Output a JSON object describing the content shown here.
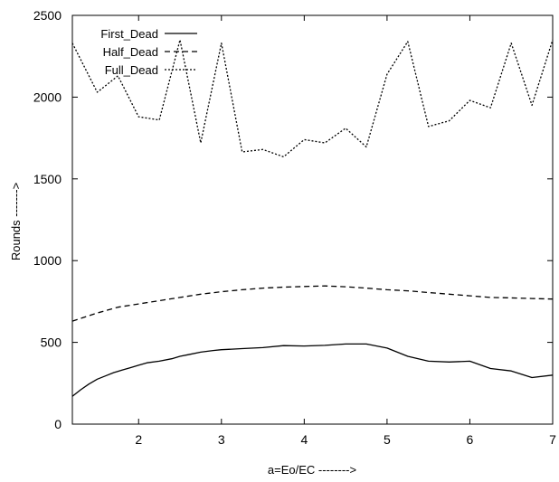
{
  "chart_data": {
    "type": "line",
    "title": "",
    "xlabel": "a=Eo/EC -------->",
    "ylabel": "Rounds ------->",
    "xlim": [
      1.2,
      7.0
    ],
    "ylim": [
      0,
      2500
    ],
    "xticks": [
      2,
      3,
      4,
      5,
      6,
      7
    ],
    "yticks": [
      0,
      500,
      1000,
      1500,
      2000,
      2500
    ],
    "grid": false,
    "legend_position": "top-left",
    "series": [
      {
        "name": "First_Dead",
        "style": "solid",
        "color": "#000000",
        "points": [
          [
            1.2,
            170
          ],
          [
            1.3,
            210
          ],
          [
            1.4,
            245
          ],
          [
            1.5,
            275
          ],
          [
            1.6,
            295
          ],
          [
            1.7,
            315
          ],
          [
            1.8,
            330
          ],
          [
            1.9,
            345
          ],
          [
            2.0,
            360
          ],
          [
            2.1,
            375
          ],
          [
            2.25,
            385
          ],
          [
            2.4,
            400
          ],
          [
            2.5,
            415
          ],
          [
            2.6,
            425
          ],
          [
            2.75,
            440
          ],
          [
            2.9,
            450
          ],
          [
            3.0,
            455
          ],
          [
            3.25,
            462
          ],
          [
            3.5,
            468
          ],
          [
            3.75,
            480
          ],
          [
            4.0,
            478
          ],
          [
            4.25,
            482
          ],
          [
            4.5,
            490
          ],
          [
            4.75,
            490
          ],
          [
            5.0,
            465
          ],
          [
            5.25,
            415
          ],
          [
            5.5,
            385
          ],
          [
            5.75,
            380
          ],
          [
            6.0,
            385
          ],
          [
            6.25,
            340
          ],
          [
            6.5,
            325
          ],
          [
            6.75,
            285
          ],
          [
            7.0,
            300
          ]
        ]
      },
      {
        "name": "Half_Dead",
        "style": "dashed",
        "color": "#000000",
        "points": [
          [
            1.2,
            630
          ],
          [
            1.5,
            680
          ],
          [
            1.75,
            715
          ],
          [
            2.0,
            735
          ],
          [
            2.25,
            755
          ],
          [
            2.5,
            775
          ],
          [
            2.75,
            795
          ],
          [
            3.0,
            810
          ],
          [
            3.25,
            822
          ],
          [
            3.5,
            832
          ],
          [
            3.75,
            838
          ],
          [
            4.0,
            842
          ],
          [
            4.25,
            845
          ],
          [
            4.5,
            840
          ],
          [
            4.75,
            832
          ],
          [
            5.0,
            822
          ],
          [
            5.25,
            815
          ],
          [
            5.5,
            805
          ],
          [
            5.75,
            795
          ],
          [
            6.0,
            785
          ],
          [
            6.25,
            775
          ],
          [
            6.5,
            772
          ],
          [
            6.75,
            768
          ],
          [
            7.0,
            765
          ]
        ]
      },
      {
        "name": "Full_Dead",
        "style": "dotted",
        "color": "#000000",
        "points": [
          [
            1.2,
            2330
          ],
          [
            1.5,
            2030
          ],
          [
            1.75,
            2130
          ],
          [
            2.0,
            1880
          ],
          [
            2.25,
            1860
          ],
          [
            2.5,
            2350
          ],
          [
            2.75,
            1720
          ],
          [
            3.0,
            2330
          ],
          [
            3.25,
            1665
          ],
          [
            3.5,
            1680
          ],
          [
            3.75,
            1635
          ],
          [
            4.0,
            1740
          ],
          [
            4.25,
            1720
          ],
          [
            4.5,
            1810
          ],
          [
            4.75,
            1695
          ],
          [
            5.0,
            2140
          ],
          [
            5.25,
            2340
          ],
          [
            5.5,
            1820
          ],
          [
            5.75,
            1855
          ],
          [
            6.0,
            1980
          ],
          [
            6.25,
            1935
          ],
          [
            6.5,
            2330
          ],
          [
            6.75,
            1950
          ],
          [
            7.0,
            2350
          ]
        ]
      }
    ]
  }
}
